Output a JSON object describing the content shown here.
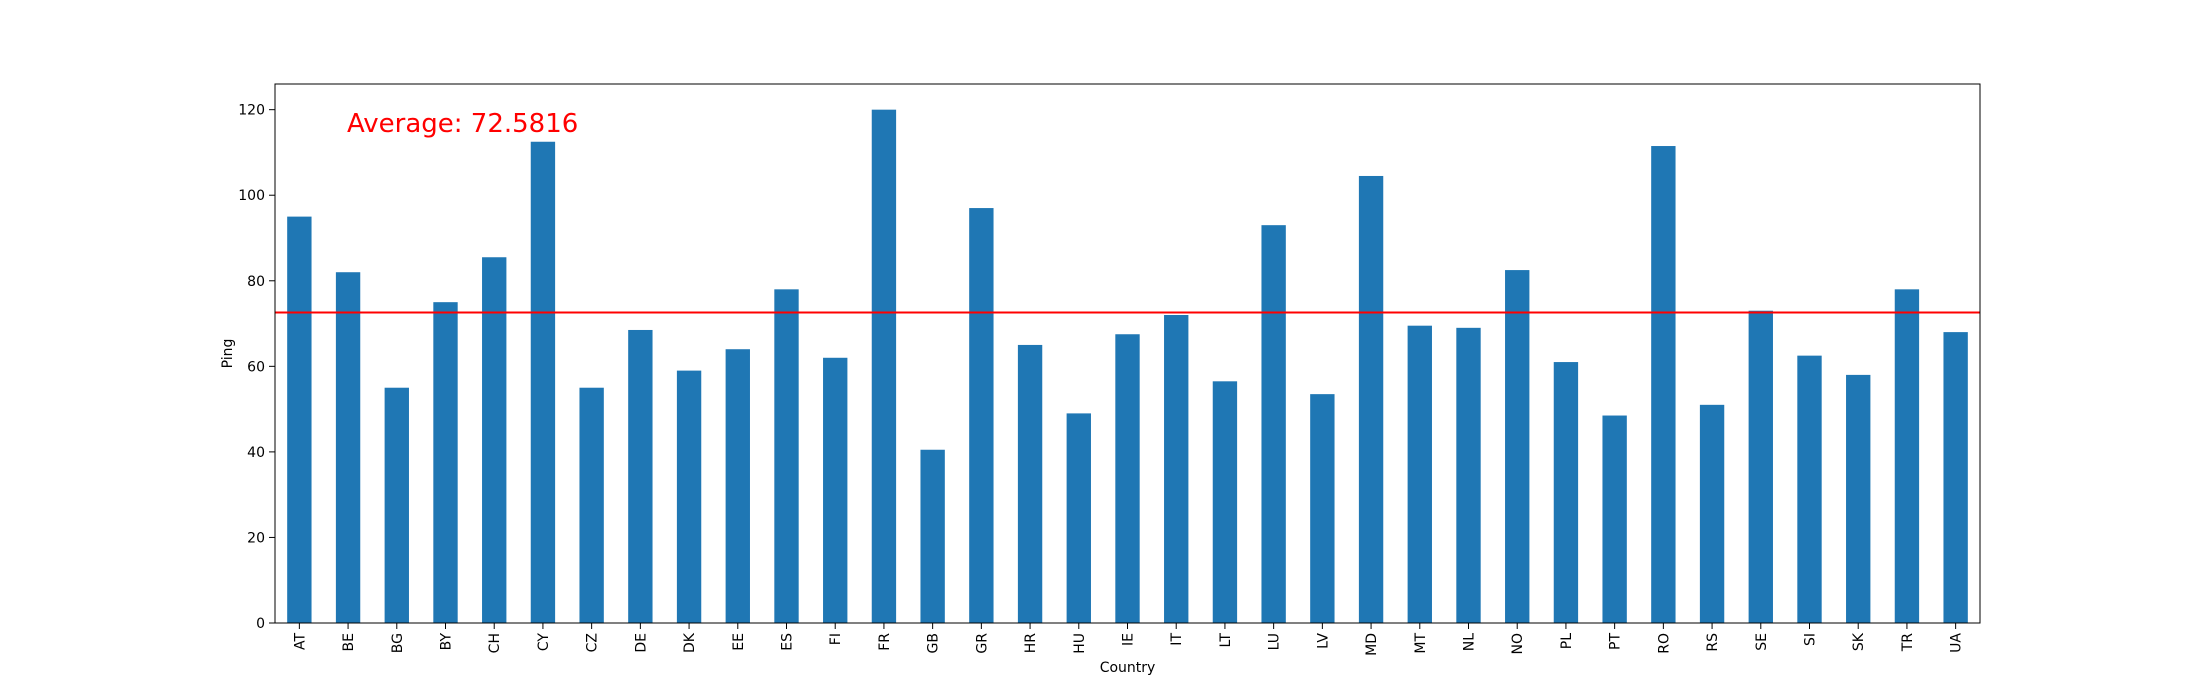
{
  "chart_data": {
    "type": "bar",
    "title": "",
    "xlabel": "Country",
    "ylabel": "Ping",
    "ylim": [
      0,
      126
    ],
    "yticks": [
      0,
      20,
      40,
      60,
      80,
      100,
      120
    ],
    "categories": [
      "AT",
      "BE",
      "BG",
      "BY",
      "CH",
      "CY",
      "CZ",
      "DE",
      "DK",
      "EE",
      "ES",
      "FI",
      "FR",
      "GB",
      "GR",
      "HR",
      "HU",
      "IE",
      "IT",
      "LT",
      "LU",
      "LV",
      "MD",
      "MT",
      "NL",
      "NO",
      "PL",
      "PT",
      "RO",
      "RS",
      "SE",
      "SI",
      "SK",
      "TR",
      "UA"
    ],
    "values": [
      95,
      82,
      55,
      75,
      85.5,
      112.5,
      55,
      68.5,
      59,
      64,
      78,
      62,
      120,
      40.5,
      97,
      65,
      49,
      67.5,
      72,
      56.5,
      93,
      53.5,
      104.5,
      69.5,
      69,
      82.5,
      61,
      48.5,
      111.5,
      51,
      73,
      62.5,
      58,
      78,
      68
    ],
    "bar_color": "#1f77b4",
    "average": {
      "value": 72.5816,
      "label": "Average: 72.5816",
      "color": "#ff0000"
    },
    "grid": false,
    "legend": "none"
  }
}
